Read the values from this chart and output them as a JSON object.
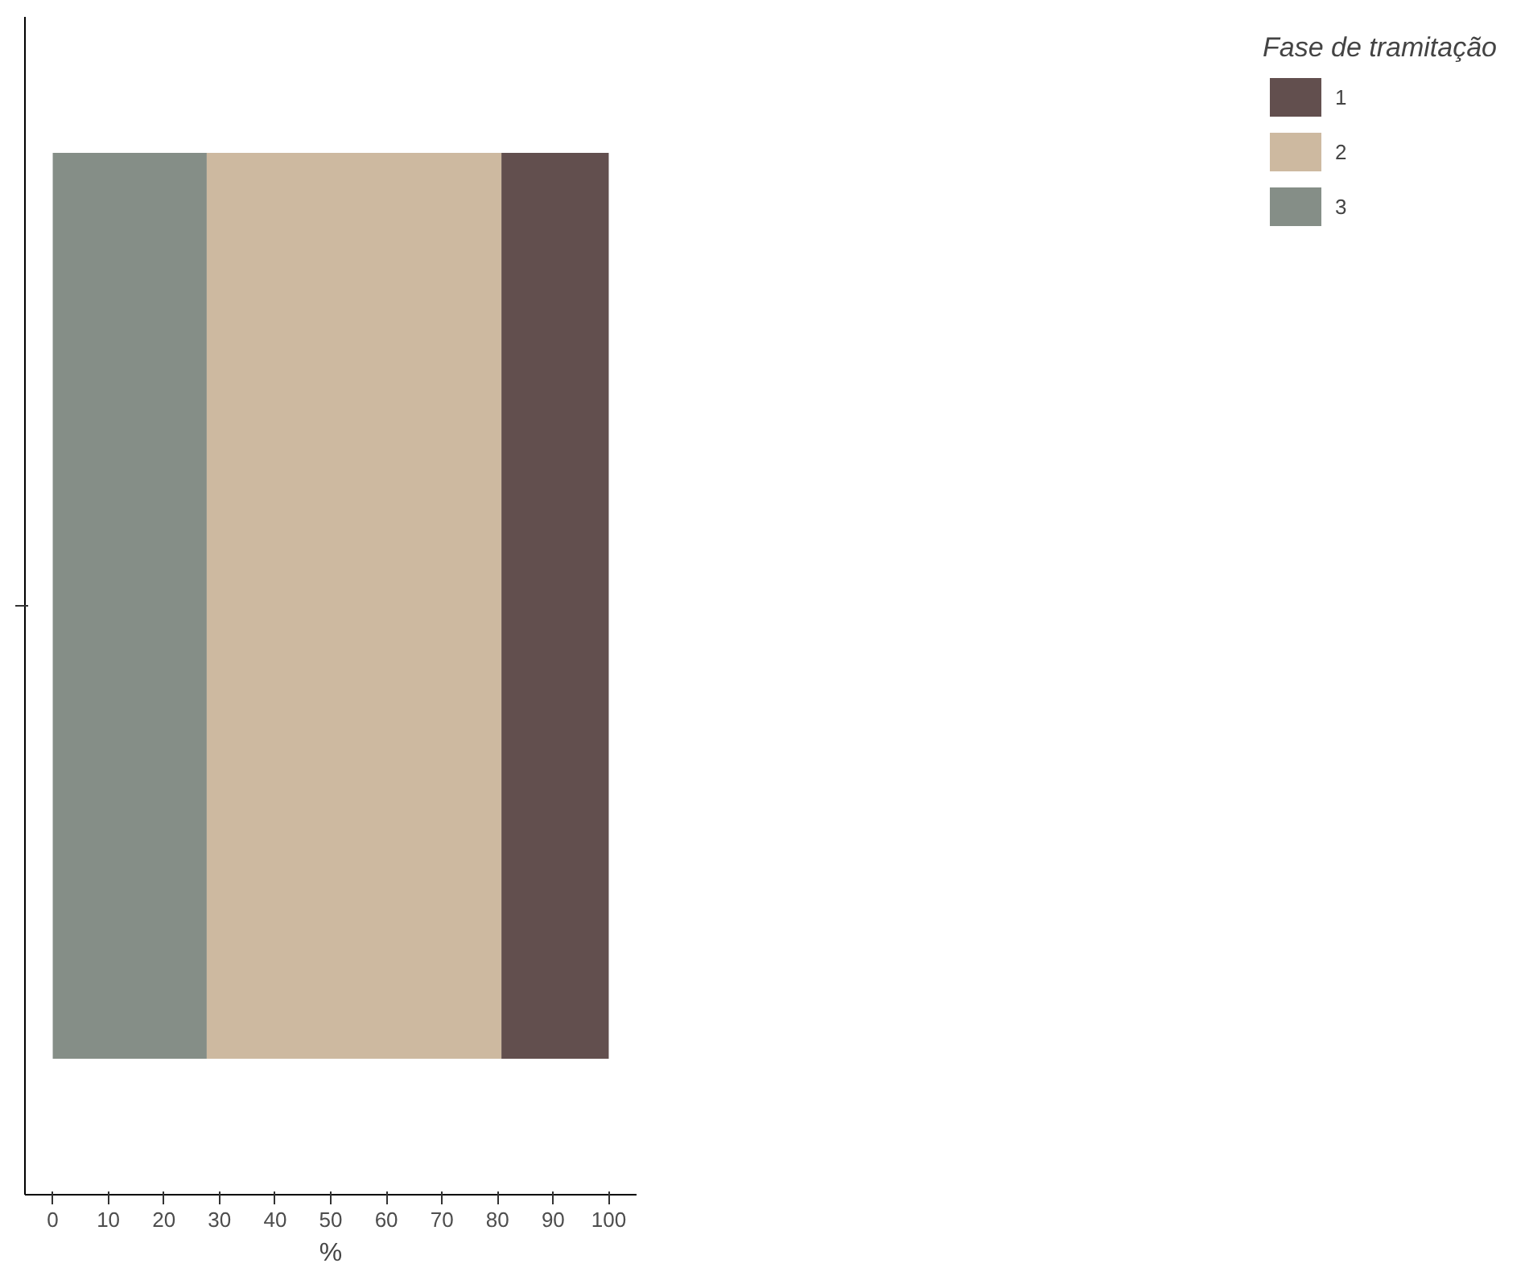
{
  "chart_data": {
    "type": "bar",
    "orientation": "horizontal",
    "stacked": true,
    "xlabel": "%",
    "legend_title": "Fase de tramitação",
    "legend": "right",
    "categories": [
      null
    ],
    "series": [
      {
        "name": "3",
        "color": "#858e87",
        "values": [
          27.7
        ]
      },
      {
        "name": "2",
        "color": "#cdb9a0",
        "values": [
          53.0
        ]
      },
      {
        "name": "1",
        "color": "#624f4e",
        "values": [
          19.3
        ]
      }
    ],
    "xlim": [
      -5,
      105
    ],
    "xticks": [
      0,
      10,
      20,
      30,
      40,
      50,
      60,
      70,
      80,
      90,
      100
    ],
    "grid": false
  }
}
